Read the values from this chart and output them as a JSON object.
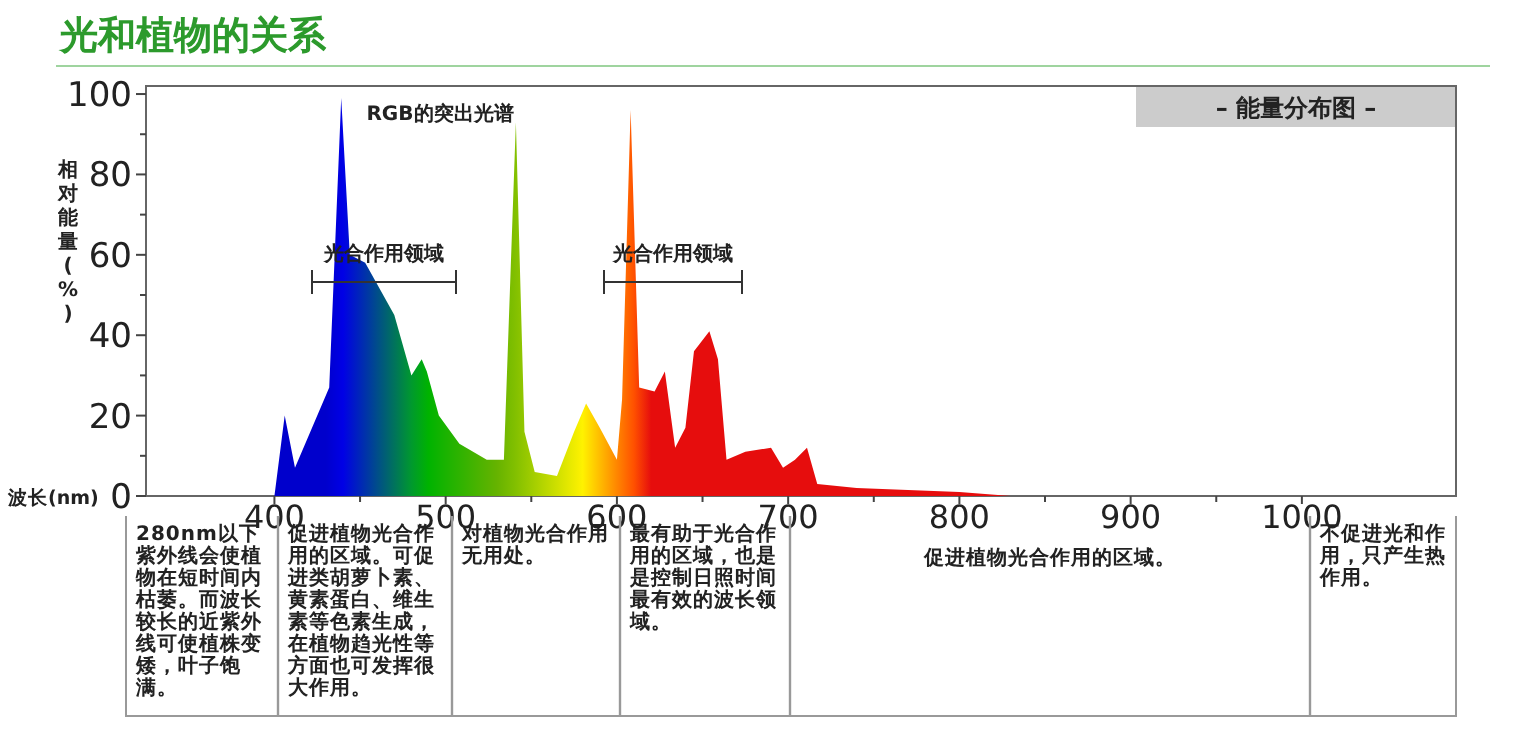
{
  "chart_data": {
    "type": "area",
    "title": "光和植物的关系",
    "subtitle": "– 能量分布图 –",
    "xlabel": "波长(nm)",
    "ylabel": "相对能量(%)",
    "x": [
      400,
      406,
      412,
      432,
      439,
      444,
      453,
      470,
      480,
      486,
      489,
      496,
      508,
      524,
      534,
      541,
      546,
      552,
      565,
      575,
      582,
      590,
      600,
      603,
      608,
      613,
      622,
      628,
      634,
      640,
      645,
      654,
      659,
      664,
      675,
      690,
      697,
      704,
      711,
      717,
      740,
      800,
      830
    ],
    "values": [
      0,
      20,
      7,
      27,
      99,
      60,
      58,
      45,
      30,
      34,
      31,
      20,
      13,
      9,
      9,
      93,
      16,
      6,
      5,
      16,
      23,
      17,
      9,
      24,
      96,
      27,
      26,
      31,
      12,
      17,
      36,
      41,
      34,
      9,
      11,
      12,
      7,
      9,
      12,
      3,
      2,
      1,
      0
    ],
    "xlim": [
      325,
      1090
    ],
    "ylim": [
      0,
      102
    ],
    "xticks": [
      400,
      500,
      600,
      700,
      800,
      900,
      1000
    ],
    "yticks": [
      0,
      20,
      40,
      60,
      80,
      100
    ],
    "annotations": [
      "RGB的突出光谱",
      "光合作用领域",
      "光合作用领域",
      "280nm以下紫外线会使植物在短时间内枯萎。而波长较长的近紫外线可使植株变矮，叶子饱满。",
      "促进植物光合作用的区域。可促进类胡萝卜素、黄素蛋白、维生素等色素生成，在植物趋光性等方面也可发挥很大作用。",
      "对植物光合作用无用处。",
      "最有助于光合作用的区域，也是是控制日照时间最有效的波长领域。",
      "促进植物光合作用的区域。",
      "不促进光和作用，只产生热作用。"
    ]
  }
}
